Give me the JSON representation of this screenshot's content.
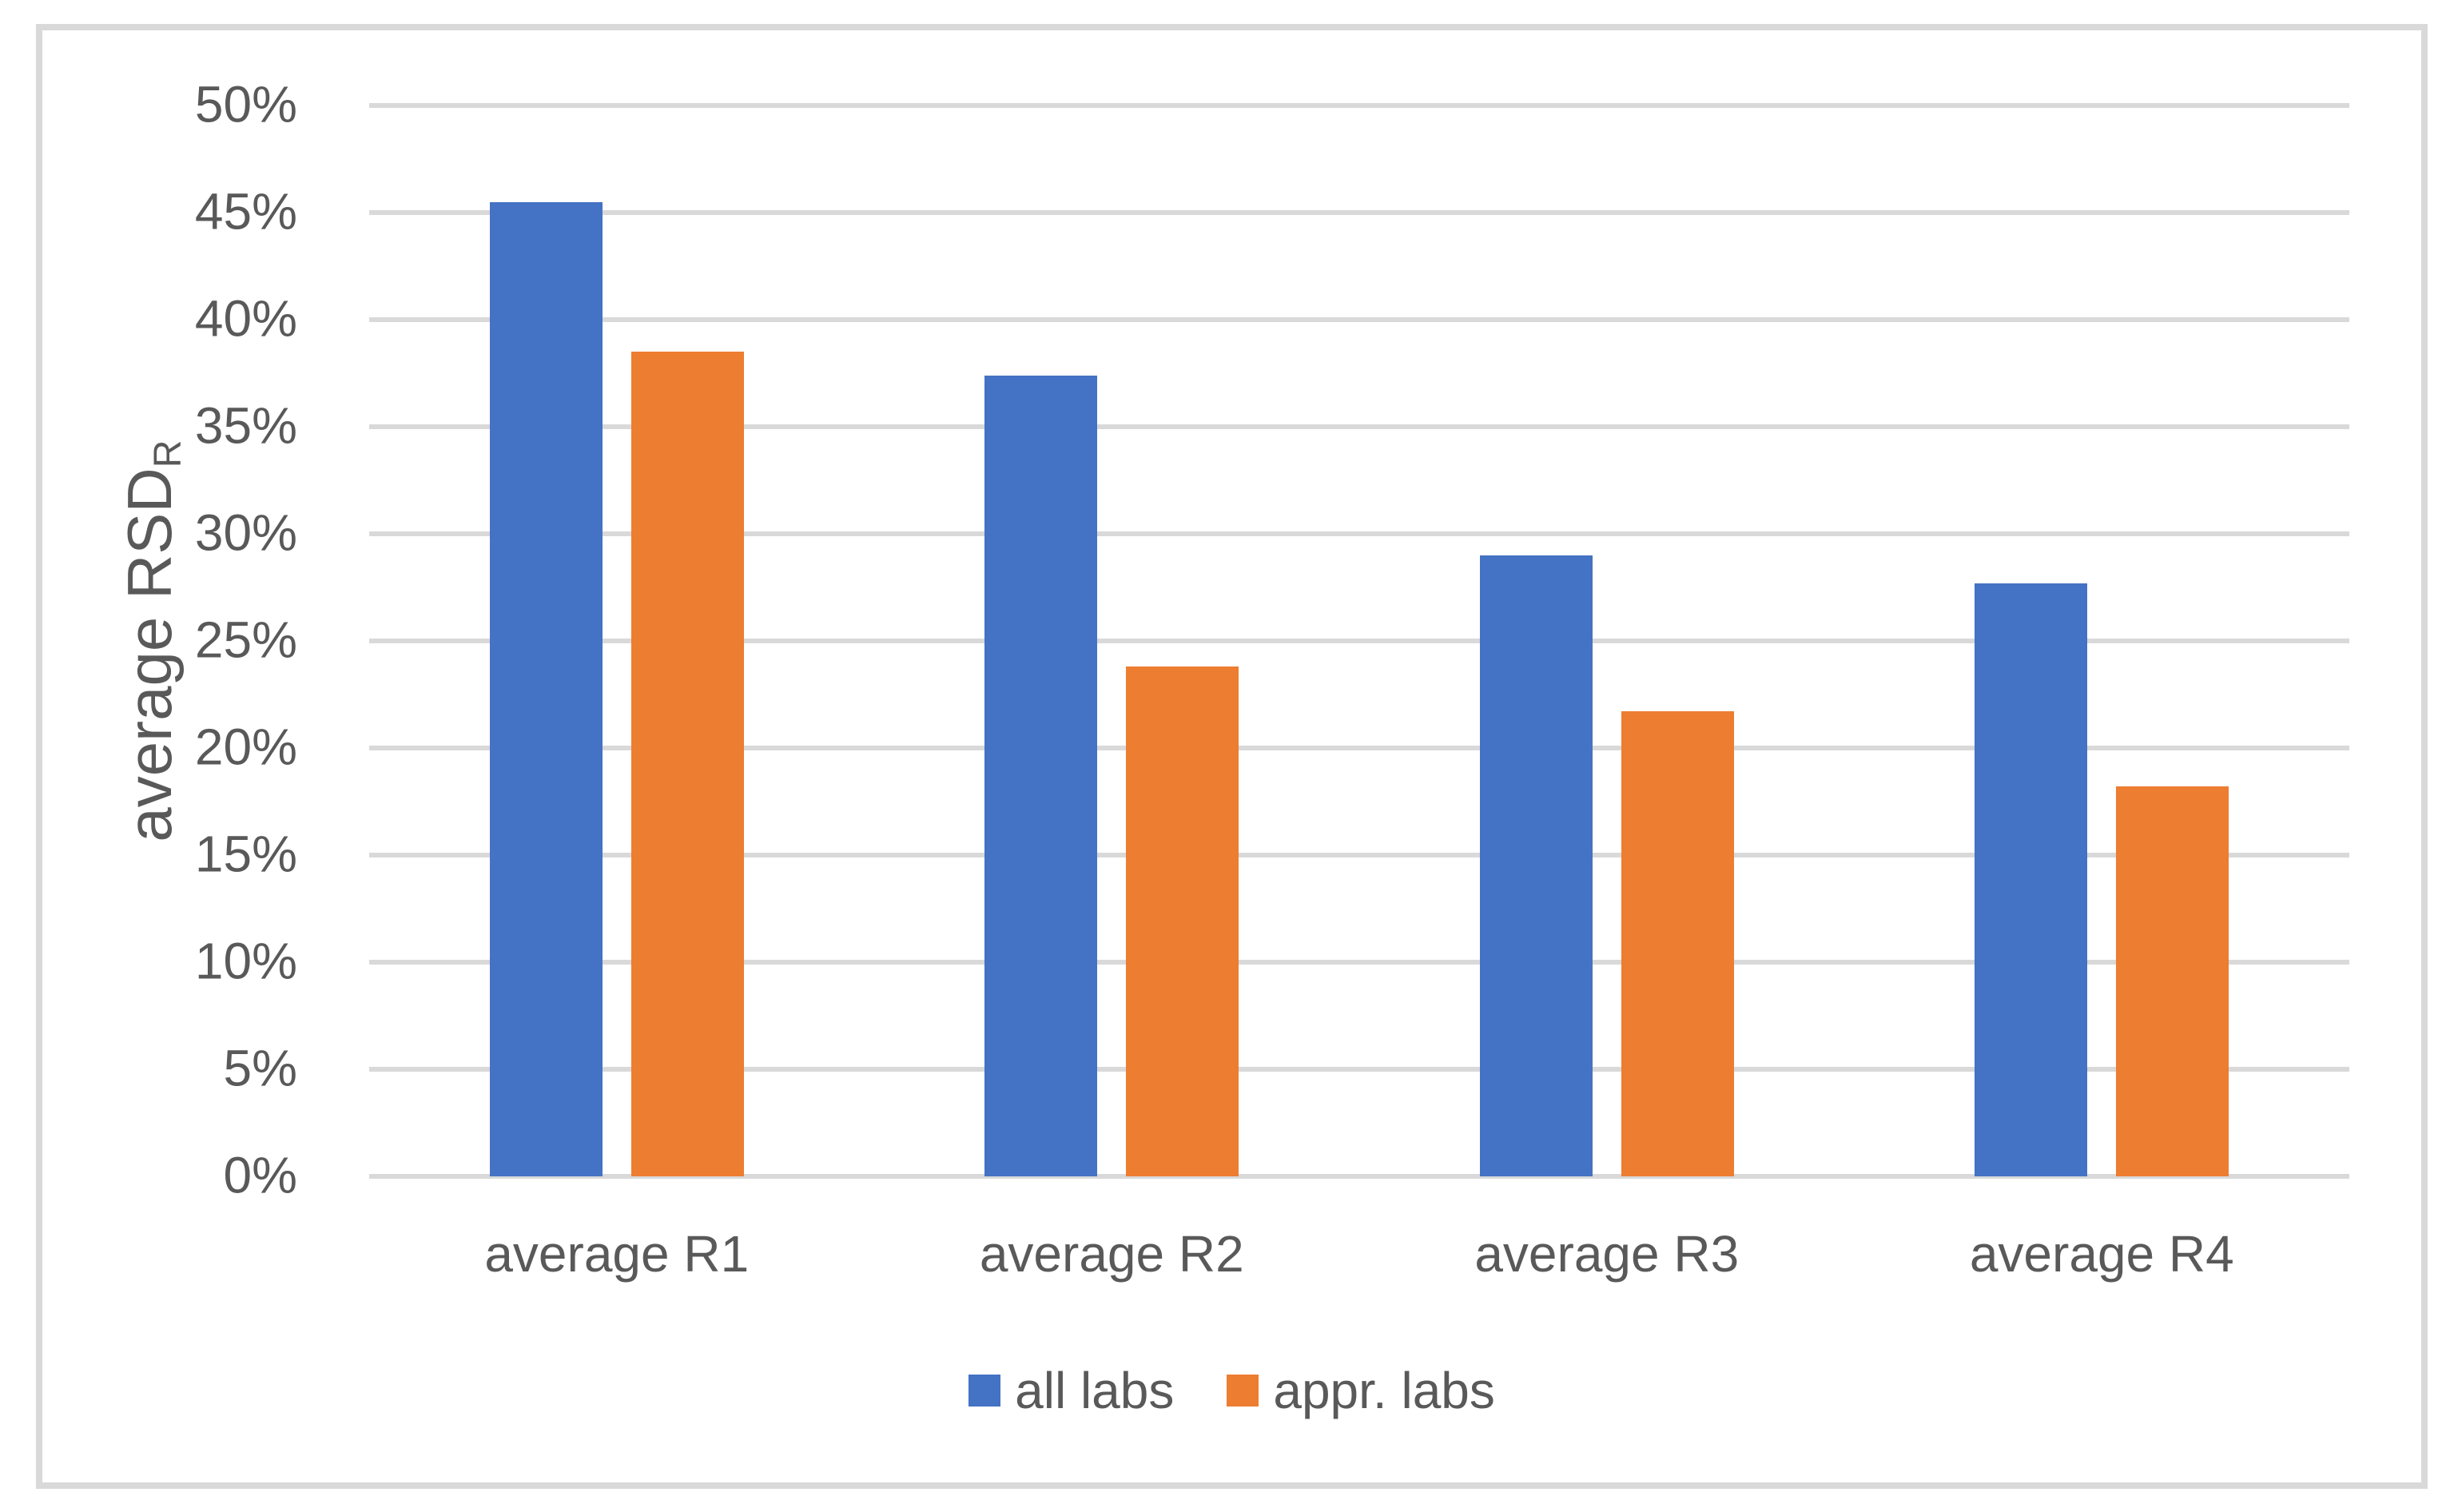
{
  "chart_data": {
    "type": "bar",
    "title": "",
    "categories": [
      "average R1",
      "average R2",
      "average R3",
      "average R4"
    ],
    "series": [
      {
        "name": "all labs",
        "color": "#4472C4",
        "values": [
          45.5,
          37.4,
          29.0,
          27.7
        ]
      },
      {
        "name": "appr. labs",
        "color": "#ED7D31",
        "values": [
          38.5,
          23.8,
          21.7,
          18.2
        ]
      }
    ],
    "xlabel": "",
    "ylabel": "average RSD",
    "ylabel_subscript": "R",
    "ylim": [
      0,
      50
    ],
    "y_tick_step": 5,
    "y_tick_labels": [
      "0%",
      "5%",
      "10%",
      "15%",
      "20%",
      "25%",
      "30%",
      "35%",
      "40%",
      "45%",
      "50%"
    ],
    "grid": "horizontal",
    "legend_position": "bottom",
    "legend": [
      "all labs",
      "appr. labs"
    ]
  },
  "colors": {
    "gridline": "#D9D9D9",
    "axis_text": "#595959",
    "chart_border": "#D9D9D9",
    "background": "#FFFFFF"
  }
}
